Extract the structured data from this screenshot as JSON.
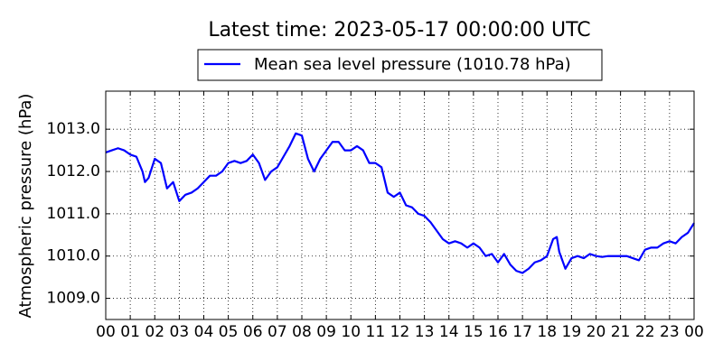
{
  "chart_data": {
    "type": "line",
    "title": "Latest time: 2023-05-17 00:00:00 UTC",
    "ylabel": "Atmospheric pressure (hPa)",
    "x": [
      0,
      0.25,
      0.5,
      0.75,
      1,
      1.25,
      1.5,
      1.6,
      1.75,
      2,
      2.25,
      2.5,
      2.75,
      3,
      3.25,
      3.5,
      3.75,
      4,
      4.25,
      4.5,
      4.75,
      5,
      5.25,
      5.5,
      5.75,
      6,
      6.25,
      6.5,
      6.75,
      7,
      7.25,
      7.5,
      7.75,
      8,
      8.25,
      8.5,
      8.75,
      9,
      9.25,
      9.5,
      9.75,
      10,
      10.25,
      10.5,
      10.75,
      11,
      11.25,
      11.5,
      11.75,
      12,
      12.25,
      12.5,
      12.75,
      13,
      13.25,
      13.5,
      13.75,
      14,
      14.25,
      14.5,
      14.75,
      15,
      15.25,
      15.5,
      15.75,
      16,
      16.25,
      16.5,
      16.75,
      17,
      17.25,
      17.5,
      17.75,
      18,
      18.25,
      18.4,
      18.5,
      18.75,
      19,
      19.25,
      19.5,
      19.75,
      20,
      20.25,
      20.5,
      20.75,
      21,
      21.25,
      21.5,
      21.75,
      22,
      22.25,
      22.5,
      22.75,
      23,
      23.25,
      23.5,
      23.75,
      24
    ],
    "series": [
      {
        "name": "Mean sea level pressure (1010.78 hPa)",
        "color": "#0000ff",
        "values": [
          1012.45,
          1012.5,
          1012.55,
          1012.5,
          1012.4,
          1012.35,
          1012.0,
          1011.75,
          1011.85,
          1012.3,
          1012.2,
          1011.6,
          1011.75,
          1011.3,
          1011.45,
          1011.5,
          1011.6,
          1011.75,
          1011.9,
          1011.9,
          1012.0,
          1012.2,
          1012.25,
          1012.2,
          1012.25,
          1012.4,
          1012.2,
          1011.8,
          1012.0,
          1012.1,
          1012.35,
          1012.6,
          1012.9,
          1012.85,
          1012.3,
          1012.0,
          1012.3,
          1012.5,
          1012.7,
          1012.7,
          1012.5,
          1012.5,
          1012.6,
          1012.5,
          1012.2,
          1012.2,
          1012.1,
          1011.5,
          1011.4,
          1011.5,
          1011.2,
          1011.15,
          1011.0,
          1010.95,
          1010.8,
          1010.6,
          1010.4,
          1010.3,
          1010.35,
          1010.3,
          1010.2,
          1010.3,
          1010.2,
          1010.0,
          1010.05,
          1009.85,
          1010.05,
          1009.8,
          1009.65,
          1009.6,
          1009.7,
          1009.85,
          1009.9,
          1010.0,
          1010.4,
          1010.45,
          1010.1,
          1009.7,
          1009.95,
          1010.0,
          1009.95,
          1010.05,
          1010.0,
          1009.98,
          1010.0,
          1010.0,
          1010.0,
          1010.0,
          1009.95,
          1009.9,
          1010.15,
          1010.2,
          1010.2,
          1010.3,
          1010.35,
          1010.3,
          1010.45,
          1010.55,
          1010.78
        ]
      }
    ],
    "xlim": [
      0,
      24
    ],
    "xticks": [
      {
        "value": 0,
        "label": "00"
      },
      {
        "value": 1,
        "label": "01"
      },
      {
        "value": 2,
        "label": "02"
      },
      {
        "value": 3,
        "label": "03"
      },
      {
        "value": 4,
        "label": "04"
      },
      {
        "value": 5,
        "label": "05"
      },
      {
        "value": 6,
        "label": "06"
      },
      {
        "value": 7,
        "label": "07"
      },
      {
        "value": 8,
        "label": "08"
      },
      {
        "value": 9,
        "label": "09"
      },
      {
        "value": 10,
        "label": "10"
      },
      {
        "value": 11,
        "label": "11"
      },
      {
        "value": 12,
        "label": "12"
      },
      {
        "value": 13,
        "label": "13"
      },
      {
        "value": 14,
        "label": "14"
      },
      {
        "value": 15,
        "label": "15"
      },
      {
        "value": 16,
        "label": "16"
      },
      {
        "value": 17,
        "label": "17"
      },
      {
        "value": 18,
        "label": "18"
      },
      {
        "value": 19,
        "label": "19"
      },
      {
        "value": 20,
        "label": "20"
      },
      {
        "value": 21,
        "label": "21"
      },
      {
        "value": 22,
        "label": "22"
      },
      {
        "value": 23,
        "label": "23"
      },
      {
        "value": 24,
        "label": "00"
      }
    ],
    "ylim": [
      1008.5,
      1013.9
    ],
    "yticks": [
      {
        "value": 1009,
        "label": "1009.0"
      },
      {
        "value": 1010,
        "label": "1010.0"
      },
      {
        "value": 1011,
        "label": "1011.0"
      },
      {
        "value": 1012,
        "label": "1012.0"
      },
      {
        "value": 1013,
        "label": "1013.0"
      }
    ],
    "grid": true,
    "legend": "top"
  }
}
